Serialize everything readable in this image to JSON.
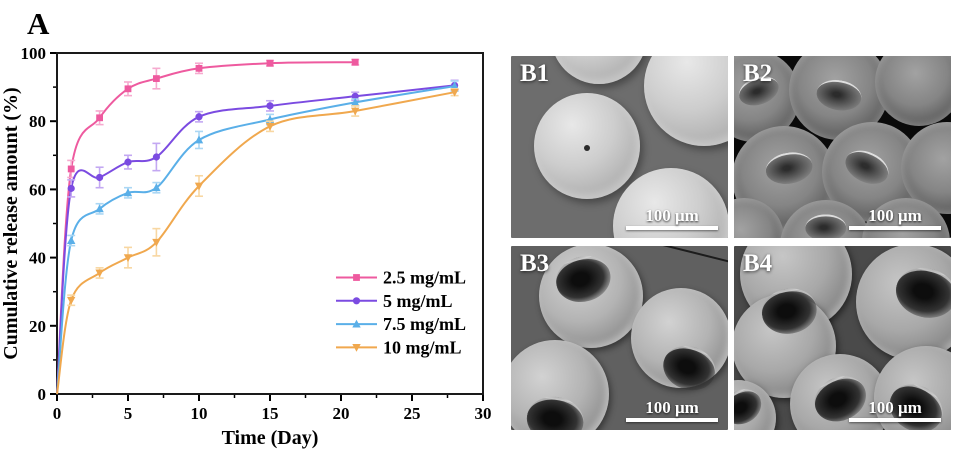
{
  "panel_a_label": "A",
  "panel_b_label": "B",
  "chart_data": {
    "type": "line",
    "title": "",
    "xlabel": "Time (Day)",
    "ylabel": "Cumulative release amount (%)",
    "xlim": [
      0,
      30
    ],
    "ylim": [
      0,
      100
    ],
    "x_major_ticks": [
      0,
      5,
      10,
      15,
      20,
      25,
      30
    ],
    "x_minor_step": 2.5,
    "y_major_ticks": [
      0,
      20,
      40,
      60,
      80,
      100
    ],
    "y_minor_step": 10,
    "grid": false,
    "legend_position": "inside-lower-right",
    "curves_start_at_origin": true,
    "error_bars": true,
    "series": [
      {
        "name": "2.5 mg/mL",
        "marker": "square",
        "color": "#ee5a9f",
        "error_color": "#f6aacf",
        "x": [
          1,
          3,
          5,
          7,
          10,
          15,
          21
        ],
        "y": [
          66,
          81,
          89.5,
          92.5,
          95.5,
          97,
          97.3
        ],
        "yerr": [
          2.5,
          2,
          2,
          3,
          1.5,
          0.8,
          0.8
        ]
      },
      {
        "name": "5 mg/mL",
        "marker": "circle",
        "color": "#7b4be1",
        "error_color": "#c3a8f2",
        "x": [
          1,
          3,
          5,
          7,
          10,
          15,
          21,
          28
        ],
        "y": [
          60.3,
          63.5,
          68,
          69.5,
          81.3,
          84.5,
          87.3,
          90.5
        ],
        "yerr": [
          2.5,
          3,
          2,
          4,
          1.5,
          1.5,
          1.2,
          1.5
        ]
      },
      {
        "name": "7.5 mg/mL",
        "marker": "triangle-up",
        "color": "#5aafe8",
        "error_color": "#abd7f4",
        "x": [
          1,
          3,
          5,
          7,
          10,
          15,
          21,
          28
        ],
        "y": [
          45,
          54.3,
          59,
          60.5,
          74.5,
          80.5,
          85.5,
          90.3
        ],
        "yerr": [
          1.5,
          1.5,
          1.5,
          1.5,
          2.5,
          1.5,
          1,
          1.5
        ]
      },
      {
        "name": "10 mg/mL",
        "marker": "triangle-down",
        "color": "#f0a84e",
        "error_color": "#f8d7a2",
        "x": [
          1,
          3,
          5,
          7,
          10,
          15,
          21,
          28
        ],
        "y": [
          27.5,
          35.5,
          40,
          44.5,
          61,
          78.5,
          83,
          88.5
        ],
        "yerr": [
          1.5,
          1.5,
          3,
          4,
          3,
          1.5,
          1.5,
          1
        ]
      }
    ]
  },
  "sem_tiles": [
    {
      "id": "B1",
      "scale_bar_label": "100 μm",
      "bg": "#6d6d6d"
    },
    {
      "id": "B2",
      "scale_bar_label": "100 μm",
      "bg": "#0a0a0a"
    },
    {
      "id": "B3",
      "scale_bar_label": "100 μm",
      "bg": "#606060"
    },
    {
      "id": "B4",
      "scale_bar_label": "100 μm",
      "bg": "#4a4a4a"
    }
  ]
}
